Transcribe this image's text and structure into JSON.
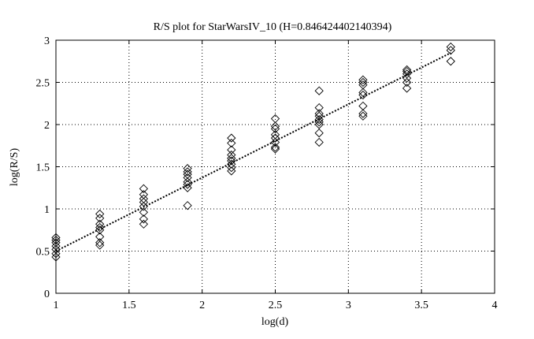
{
  "chart_data": {
    "type": "scatter",
    "title": "R/S plot for StarWarsIV_10 (H=0.846424402140394)",
    "xlabel": "log(d)",
    "ylabel": "log(R/S)",
    "xlim": [
      1,
      4
    ],
    "ylim": [
      0,
      3
    ],
    "xticks": [
      "1",
      "1.5",
      "2",
      "2.5",
      "3",
      "3.5",
      "4"
    ],
    "yticks": [
      "0",
      "0.5",
      "1",
      "1.5",
      "2",
      "2.5",
      "3"
    ],
    "grid": true,
    "marker": "diamond",
    "points": [
      [
        1.0,
        0.43
      ],
      [
        1.0,
        0.47
      ],
      [
        1.0,
        0.52
      ],
      [
        1.0,
        0.56
      ],
      [
        1.0,
        0.6
      ],
      [
        1.0,
        0.63
      ],
      [
        1.0,
        0.66
      ],
      [
        1.3,
        0.57
      ],
      [
        1.3,
        0.6
      ],
      [
        1.3,
        0.67
      ],
      [
        1.3,
        0.75
      ],
      [
        1.3,
        0.78
      ],
      [
        1.3,
        0.82
      ],
      [
        1.3,
        0.89
      ],
      [
        1.3,
        0.94
      ],
      [
        1.6,
        0.82
      ],
      [
        1.6,
        0.88
      ],
      [
        1.6,
        0.96
      ],
      [
        1.6,
        1.03
      ],
      [
        1.6,
        1.08
      ],
      [
        1.6,
        1.12
      ],
      [
        1.6,
        1.17
      ],
      [
        1.6,
        1.24
      ],
      [
        1.9,
        1.04
      ],
      [
        1.9,
        1.25
      ],
      [
        1.9,
        1.29
      ],
      [
        1.9,
        1.32
      ],
      [
        1.9,
        1.37
      ],
      [
        1.9,
        1.41
      ],
      [
        1.9,
        1.44
      ],
      [
        1.9,
        1.48
      ],
      [
        2.2,
        1.45
      ],
      [
        2.2,
        1.49
      ],
      [
        2.2,
        1.53
      ],
      [
        2.2,
        1.57
      ],
      [
        2.2,
        1.6
      ],
      [
        2.2,
        1.64
      ],
      [
        2.2,
        1.7
      ],
      [
        2.2,
        1.78
      ],
      [
        2.2,
        1.84
      ],
      [
        2.5,
        1.71
      ],
      [
        2.5,
        1.73
      ],
      [
        2.5,
        1.79
      ],
      [
        2.5,
        1.84
      ],
      [
        2.5,
        1.88
      ],
      [
        2.5,
        1.95
      ],
      [
        2.5,
        1.98
      ],
      [
        2.5,
        2.07
      ],
      [
        2.8,
        1.79
      ],
      [
        2.8,
        1.9
      ],
      [
        2.8,
        2.0
      ],
      [
        2.8,
        2.03
      ],
      [
        2.8,
        2.06
      ],
      [
        2.8,
        2.1
      ],
      [
        2.8,
        2.13
      ],
      [
        2.8,
        2.2
      ],
      [
        2.8,
        2.4
      ],
      [
        3.1,
        2.1
      ],
      [
        3.1,
        2.13
      ],
      [
        3.1,
        2.22
      ],
      [
        3.1,
        2.35
      ],
      [
        3.1,
        2.38
      ],
      [
        3.1,
        2.47
      ],
      [
        3.1,
        2.5
      ],
      [
        3.1,
        2.53
      ],
      [
        3.4,
        2.43
      ],
      [
        3.4,
        2.5
      ],
      [
        3.4,
        2.55
      ],
      [
        3.4,
        2.6
      ],
      [
        3.4,
        2.63
      ],
      [
        3.4,
        2.65
      ],
      [
        3.7,
        2.75
      ],
      [
        3.7,
        2.88
      ],
      [
        3.7,
        2.92
      ]
    ],
    "fit_line": {
      "x": [
        1.0,
        3.7
      ],
      "y": [
        0.5,
        2.85
      ],
      "style": "dotted"
    }
  }
}
